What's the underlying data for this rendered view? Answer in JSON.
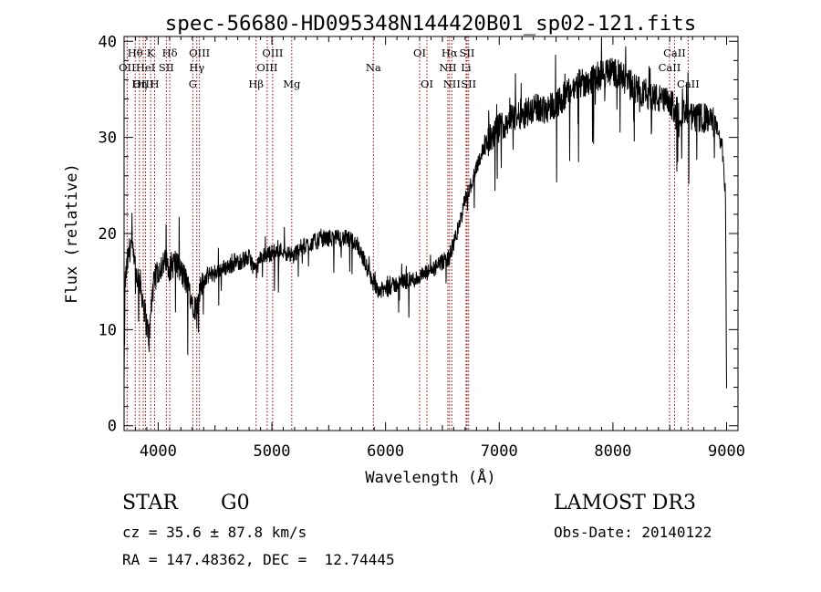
{
  "chart_data": {
    "type": "line",
    "title": "spec-56680-HD095348N144420B01_sp02-121.fits",
    "xlabel": "Wavelength (Å)",
    "ylabel": "Flux (relative)",
    "xlim": [
      3700,
      9100
    ],
    "ylim": [
      -0.5,
      40.5
    ],
    "x_ticks": [
      4000,
      5000,
      6000,
      7000,
      8000,
      9000
    ],
    "y_ticks": [
      0,
      10,
      20,
      30,
      40
    ],
    "grid": false,
    "line_color": "#000000",
    "marker_color": "#8b0000",
    "lines": [
      {
        "label": "Hθ",
        "x": 3798,
        "row": 1
      },
      {
        "label": "OII",
        "x": 3727,
        "row": 2
      },
      {
        "label": "OIII",
        "x": 3869,
        "row": 3
      },
      {
        "label": "K",
        "x": 3934,
        "row": 1
      },
      {
        "label": "HeI",
        "x": 3889,
        "row": 2
      },
      {
        "label": "Hη",
        "x": 3835,
        "row": 3
      },
      {
        "label": "SII",
        "x": 4072,
        "row": 2
      },
      {
        "label": "H",
        "x": 3969,
        "row": 3
      },
      {
        "label": "Hδ",
        "x": 4102,
        "row": 1
      },
      {
        "label": "OIII",
        "x": 4363,
        "row": 1
      },
      {
        "label": "Hγ",
        "x": 4340,
        "row": 2
      },
      {
        "label": "G",
        "x": 4305,
        "row": 3
      },
      {
        "label": "OIII",
        "x": 5007,
        "row": 1
      },
      {
        "label": "OIII",
        "x": 4959,
        "row": 2
      },
      {
        "label": "Hβ",
        "x": 4861,
        "row": 3
      },
      {
        "label": "Mg",
        "x": 5175,
        "row": 3
      },
      {
        "label": "Na",
        "x": 5893,
        "row": 2
      },
      {
        "label": "OI",
        "x": 6300,
        "row": 1
      },
      {
        "label": "OI",
        "x": 6364,
        "row": 3
      },
      {
        "label": "Hα",
        "x": 6563,
        "row": 1
      },
      {
        "label": "NII",
        "x": 6548,
        "row": 2
      },
      {
        "label": "NII",
        "x": 6583,
        "row": 3
      },
      {
        "label": "SII",
        "x": 6717,
        "row": 1
      },
      {
        "label": "Li",
        "x": 6708,
        "row": 2
      },
      {
        "label": "SII",
        "x": 6731,
        "row": 3
      },
      {
        "label": "CaII",
        "x": 8542,
        "row": 1
      },
      {
        "label": "CaII",
        "x": 8498,
        "row": 2
      },
      {
        "label": "CaII",
        "x": 8662,
        "row": 3
      }
    ],
    "anchors": [
      [
        3700,
        4
      ],
      [
        3710,
        15
      ],
      [
        3730,
        17
      ],
      [
        3760,
        19
      ],
      [
        3800,
        16
      ],
      [
        3840,
        15
      ],
      [
        3880,
        12
      ],
      [
        3920,
        9
      ],
      [
        3950,
        14
      ],
      [
        3990,
        16
      ],
      [
        4050,
        17
      ],
      [
        4100,
        16.5
      ],
      [
        4150,
        17
      ],
      [
        4200,
        16
      ],
      [
        4250,
        15
      ],
      [
        4300,
        13
      ],
      [
        4340,
        12
      ],
      [
        4380,
        14.5
      ],
      [
        4420,
        15.5
      ],
      [
        4500,
        16
      ],
      [
        4600,
        16.5
      ],
      [
        4700,
        17
      ],
      [
        4800,
        17.5
      ],
      [
        4860,
        16
      ],
      [
        4900,
        17.5
      ],
      [
        5000,
        18
      ],
      [
        5100,
        18.3
      ],
      [
        5175,
        17.5
      ],
      [
        5250,
        18.5
      ],
      [
        5350,
        19
      ],
      [
        5450,
        19.5
      ],
      [
        5550,
        19.5
      ],
      [
        5650,
        19.5
      ],
      [
        5750,
        19
      ],
      [
        5800,
        17.5
      ],
      [
        5850,
        16
      ],
      [
        5893,
        15
      ],
      [
        5950,
        14
      ],
      [
        6050,
        14.5
      ],
      [
        6150,
        15
      ],
      [
        6250,
        15.2
      ],
      [
        6350,
        15.8
      ],
      [
        6450,
        16.5
      ],
      [
        6500,
        17
      ],
      [
        6560,
        17.5
      ],
      [
        6600,
        19
      ],
      [
        6650,
        21
      ],
      [
        6700,
        23.5
      ],
      [
        6750,
        25
      ],
      [
        6800,
        27
      ],
      [
        6850,
        28.5
      ],
      [
        6900,
        29.5
      ],
      [
        7000,
        31
      ],
      [
        7100,
        32
      ],
      [
        7200,
        32.5
      ],
      [
        7300,
        33
      ],
      [
        7400,
        33
      ],
      [
        7500,
        33.5
      ],
      [
        7600,
        34.5
      ],
      [
        7700,
        35.5
      ],
      [
        7800,
        36
      ],
      [
        7900,
        36.5
      ],
      [
        8000,
        37
      ],
      [
        8100,
        36
      ],
      [
        8200,
        35
      ],
      [
        8300,
        34.5
      ],
      [
        8400,
        34
      ],
      [
        8500,
        33.5
      ],
      [
        8600,
        32.5
      ],
      [
        8700,
        32
      ],
      [
        8800,
        32
      ],
      [
        8900,
        31.5
      ],
      [
        8960,
        29
      ],
      [
        8990,
        24
      ],
      [
        9000,
        3
      ]
    ]
  },
  "info": {
    "object_type": "STAR",
    "subclass": "G0",
    "survey": "LAMOST DR3",
    "redshift_line": "cz = 35.6 ± 87.8 km/s",
    "obs_date_line": "Obs-Date: 20140122",
    "coords_line": "RA = 147.48362, DEC =  12.74445"
  }
}
